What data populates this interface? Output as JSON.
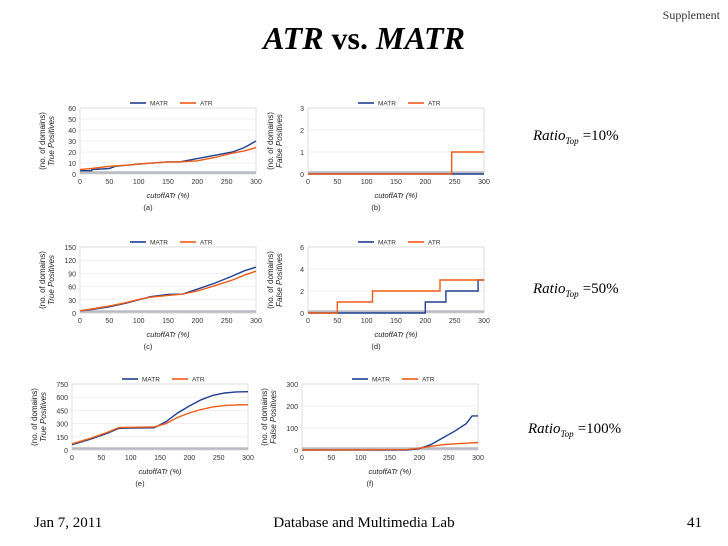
{
  "slide": {
    "corner_label": "Supplement",
    "title_left": "ATR",
    "title_vs": "vs.",
    "title_right": "MATR",
    "footer_left": "Jan 7, 2011",
    "footer_center": "Database and Multimedia Lab",
    "footer_right": "41"
  },
  "ratios": [
    {
      "label": "Ratio",
      "sub": "Top",
      "value": "=10%"
    },
    {
      "label": "Ratio",
      "sub": "Top",
      "value": "=50%"
    },
    {
      "label": "Ratio",
      "sub": "Top",
      "value": "=100%"
    }
  ],
  "colors": {
    "MATR": "#1f3f8f",
    "ATR": "#f05a14",
    "gray": "#b9bcc4"
  },
  "chart_data": [
    {
      "id": "a",
      "type": "line",
      "sublabel": "(a)",
      "ylabel1": "(no. of domains)",
      "ylabel2": "True Positives",
      "xlabel": "cutoffATr (%)",
      "xlim": [
        0,
        300
      ],
      "ylim": [
        0,
        60
      ],
      "xticks": [
        "0",
        "50",
        "100",
        "150",
        "200",
        "250",
        "300"
      ],
      "yticks": [
        "0",
        "10",
        "20",
        "30",
        "40",
        "50",
        "60"
      ],
      "legend": [
        "MATR",
        "ATR"
      ],
      "series": [
        {
          "name": "MATR",
          "points": [
            [
              0,
              3
            ],
            [
              20,
              3
            ],
            [
              20,
              4
            ],
            [
              50,
              5
            ],
            [
              60,
              7
            ],
            [
              100,
              9
            ],
            [
              150,
              11
            ],
            [
              170,
              11
            ],
            [
              200,
              14
            ],
            [
              230,
              17
            ],
            [
              260,
              20
            ],
            [
              280,
              24
            ],
            [
              300,
              30
            ]
          ]
        },
        {
          "name": "ATR",
          "points": [
            [
              0,
              4
            ],
            [
              20,
              5
            ],
            [
              50,
              7
            ],
            [
              80,
              8
            ],
            [
              100,
              9
            ],
            [
              150,
              11
            ],
            [
              170,
              11
            ],
            [
              200,
              12
            ],
            [
              230,
              15
            ],
            [
              260,
              19
            ],
            [
              280,
              21
            ],
            [
              300,
              24
            ]
          ]
        }
      ]
    },
    {
      "id": "b",
      "type": "line",
      "sublabel": "(b)",
      "ylabel1": "(no. of domains)",
      "ylabel2": "False Positives",
      "xlabel": "cutoffATr (%)",
      "xlim": [
        0,
        300
      ],
      "ylim": [
        0,
        3
      ],
      "xticks": [
        "0",
        "50",
        "100",
        "150",
        "200",
        "250",
        "300"
      ],
      "yticks": [
        "0",
        "1",
        "2",
        "3"
      ],
      "legend": [
        "MATR",
        "ATR"
      ],
      "series": [
        {
          "name": "MATR",
          "points": [
            [
              0,
              0
            ],
            [
              300,
              0
            ]
          ]
        },
        {
          "name": "ATR",
          "points": [
            [
              0,
              0
            ],
            [
              245,
              0
            ],
            [
              245,
              1
            ],
            [
              300,
              1
            ]
          ]
        }
      ]
    },
    {
      "id": "c",
      "type": "line",
      "sublabel": "(c)",
      "ylabel1": "(no. of domains)",
      "ylabel2": "True Positives",
      "xlabel": "cutoffATr (%)",
      "xlim": [
        0,
        300
      ],
      "ylim": [
        0,
        150
      ],
      "xticks": [
        "0",
        "50",
        "100",
        "150",
        "200",
        "250",
        "300"
      ],
      "yticks": [
        "0",
        "30",
        "60",
        "90",
        "120",
        "150"
      ],
      "legend": [
        "MATR",
        "ATR"
      ],
      "series": [
        {
          "name": "MATR",
          "points": [
            [
              0,
              5
            ],
            [
              20,
              8
            ],
            [
              50,
              14
            ],
            [
              80,
              23
            ],
            [
              100,
              30
            ],
            [
              120,
              37
            ],
            [
              150,
              42
            ],
            [
              175,
              43
            ],
            [
              200,
              54
            ],
            [
              230,
              68
            ],
            [
              260,
              84
            ],
            [
              280,
              96
            ],
            [
              300,
              104
            ]
          ]
        },
        {
          "name": "ATR",
          "points": [
            [
              0,
              5
            ],
            [
              20,
              9
            ],
            [
              50,
              16
            ],
            [
              80,
              24
            ],
            [
              100,
              31
            ],
            [
              120,
              36
            ],
            [
              150,
              40
            ],
            [
              175,
              43
            ],
            [
              200,
              50
            ],
            [
              230,
              62
            ],
            [
              260,
              75
            ],
            [
              280,
              86
            ],
            [
              300,
              95
            ]
          ]
        }
      ]
    },
    {
      "id": "d",
      "type": "line",
      "sublabel": "(d)",
      "ylabel1": "(no. of domains)",
      "ylabel2": "False Positives",
      "xlabel": "cutoffATr (%)",
      "xlim": [
        0,
        300
      ],
      "ylim": [
        0,
        6
      ],
      "xticks": [
        "0",
        "50",
        "100",
        "150",
        "200",
        "250",
        "300"
      ],
      "yticks": [
        "0",
        "2",
        "4",
        "6"
      ],
      "legend": [
        "MATR",
        "ATR"
      ],
      "series": [
        {
          "name": "MATR",
          "points": [
            [
              0,
              0
            ],
            [
              200,
              0
            ],
            [
              200,
              1
            ],
            [
              235,
              1
            ],
            [
              235,
              2
            ],
            [
              290,
              2
            ],
            [
              290,
              3
            ],
            [
              300,
              3
            ]
          ]
        },
        {
          "name": "ATR",
          "points": [
            [
              0,
              0
            ],
            [
              50,
              0
            ],
            [
              50,
              1
            ],
            [
              110,
              1
            ],
            [
              110,
              2
            ],
            [
              225,
              2
            ],
            [
              225,
              3
            ],
            [
              300,
              3
            ]
          ]
        }
      ]
    },
    {
      "id": "e",
      "type": "line",
      "sublabel": "(e)",
      "ylabel1": "(no. of domains)",
      "ylabel2": "True Positives",
      "xlabel": "cutoffATr (%)",
      "xlim": [
        0,
        300
      ],
      "ylim": [
        0,
        750
      ],
      "xticks": [
        "0",
        "50",
        "100",
        "150",
        "200",
        "250",
        "300"
      ],
      "yticks": [
        "0",
        "150",
        "300",
        "450",
        "600",
        "750"
      ],
      "legend": [
        "MATR",
        "ATR"
      ],
      "series": [
        {
          "name": "MATR",
          "points": [
            [
              0,
              60
            ],
            [
              30,
              120
            ],
            [
              60,
              190
            ],
            [
              80,
              245
            ],
            [
              100,
              250
            ],
            [
              140,
              252
            ],
            [
              160,
              320
            ],
            [
              180,
              420
            ],
            [
              200,
              500
            ],
            [
              220,
              570
            ],
            [
              240,
              620
            ],
            [
              260,
              648
            ],
            [
              280,
              660
            ],
            [
              300,
              662
            ]
          ]
        },
        {
          "name": "ATR",
          "points": [
            [
              0,
              70
            ],
            [
              30,
              130
            ],
            [
              60,
              200
            ],
            [
              80,
              255
            ],
            [
              100,
              258
            ],
            [
              140,
              262
            ],
            [
              160,
              300
            ],
            [
              180,
              370
            ],
            [
              200,
              420
            ],
            [
              220,
              460
            ],
            [
              240,
              490
            ],
            [
              260,
              505
            ],
            [
              280,
              513
            ],
            [
              300,
              515
            ]
          ]
        }
      ]
    },
    {
      "id": "f",
      "type": "line",
      "sublabel": "(f)",
      "ylabel1": "(no. of domains)",
      "ylabel2": "False Positives",
      "xlabel": "cutoffATr (%)",
      "xlim": [
        0,
        300
      ],
      "ylim": [
        0,
        300
      ],
      "xticks": [
        "0",
        "50",
        "100",
        "150",
        "200",
        "250",
        "300"
      ],
      "yticks": [
        "0",
        "100",
        "200",
        "300"
      ],
      "legend": [
        "MATR",
        "ATR"
      ],
      "series": [
        {
          "name": "MATR",
          "points": [
            [
              0,
              0
            ],
            [
              180,
              0
            ],
            [
              200,
              6
            ],
            [
              220,
              25
            ],
            [
              240,
              55
            ],
            [
              260,
              85
            ],
            [
              280,
              120
            ],
            [
              290,
              155
            ],
            [
              300,
              155
            ]
          ]
        },
        {
          "name": "ATR",
          "points": [
            [
              0,
              0
            ],
            [
              180,
              2
            ],
            [
              200,
              8
            ],
            [
              220,
              17
            ],
            [
              240,
              24
            ],
            [
              260,
              28
            ],
            [
              280,
              31
            ],
            [
              300,
              34
            ]
          ]
        }
      ]
    }
  ]
}
